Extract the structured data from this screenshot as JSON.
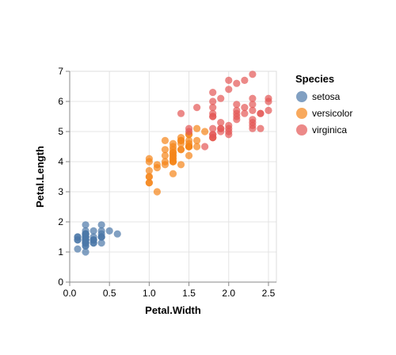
{
  "chart_data": {
    "type": "scatter",
    "xlabel": "Petal.Width",
    "ylabel": "Petal.Length",
    "xlim": [
      0,
      2.6
    ],
    "ylim": [
      0,
      7
    ],
    "x_ticks": [
      0.0,
      0.5,
      1.0,
      1.5,
      2.0,
      2.5
    ],
    "x_tick_labels": [
      "0.0",
      "0.5",
      "1.0",
      "1.5",
      "2.0",
      "2.5"
    ],
    "y_ticks": [
      0,
      1,
      2,
      3,
      4,
      5,
      6,
      7
    ],
    "y_tick_labels": [
      "0",
      "1",
      "2",
      "3",
      "4",
      "5",
      "6",
      "7"
    ],
    "grid": true,
    "legend": {
      "title": "Species",
      "position": "right"
    },
    "series": [
      {
        "name": "setosa",
        "color": "#4c78a8",
        "points": [
          [
            0.2,
            1.4
          ],
          [
            0.2,
            1.4
          ],
          [
            0.2,
            1.3
          ],
          [
            0.2,
            1.5
          ],
          [
            0.2,
            1.4
          ],
          [
            0.4,
            1.7
          ],
          [
            0.3,
            1.4
          ],
          [
            0.2,
            1.5
          ],
          [
            0.2,
            1.4
          ],
          [
            0.1,
            1.5
          ],
          [
            0.2,
            1.5
          ],
          [
            0.2,
            1.6
          ],
          [
            0.1,
            1.4
          ],
          [
            0.1,
            1.1
          ],
          [
            0.2,
            1.2
          ],
          [
            0.4,
            1.5
          ],
          [
            0.4,
            1.3
          ],
          [
            0.3,
            1.4
          ],
          [
            0.3,
            1.7
          ],
          [
            0.3,
            1.5
          ],
          [
            0.2,
            1.7
          ],
          [
            0.4,
            1.5
          ],
          [
            0.2,
            1.0
          ],
          [
            0.5,
            1.7
          ],
          [
            0.2,
            1.9
          ],
          [
            0.2,
            1.6
          ],
          [
            0.4,
            1.6
          ],
          [
            0.2,
            1.5
          ],
          [
            0.2,
            1.4
          ],
          [
            0.2,
            1.6
          ],
          [
            0.2,
            1.6
          ],
          [
            0.4,
            1.5
          ],
          [
            0.1,
            1.5
          ],
          [
            0.2,
            1.4
          ],
          [
            0.2,
            1.5
          ],
          [
            0.2,
            1.2
          ],
          [
            0.2,
            1.3
          ],
          [
            0.1,
            1.4
          ],
          [
            0.2,
            1.3
          ],
          [
            0.2,
            1.5
          ],
          [
            0.3,
            1.3
          ],
          [
            0.3,
            1.3
          ],
          [
            0.2,
            1.3
          ],
          [
            0.6,
            1.6
          ],
          [
            0.4,
            1.9
          ],
          [
            0.3,
            1.4
          ],
          [
            0.2,
            1.6
          ],
          [
            0.2,
            1.4
          ],
          [
            0.2,
            1.5
          ],
          [
            0.2,
            1.4
          ]
        ]
      },
      {
        "name": "versicolor",
        "color": "#f58518",
        "points": [
          [
            1.4,
            4.7
          ],
          [
            1.5,
            4.5
          ],
          [
            1.5,
            4.9
          ],
          [
            1.3,
            4.0
          ],
          [
            1.5,
            4.6
          ],
          [
            1.3,
            4.5
          ],
          [
            1.6,
            4.7
          ],
          [
            1.0,
            3.3
          ],
          [
            1.3,
            4.6
          ],
          [
            1.4,
            3.9
          ],
          [
            1.0,
            3.5
          ],
          [
            1.5,
            4.2
          ],
          [
            1.0,
            4.0
          ],
          [
            1.4,
            4.7
          ],
          [
            1.3,
            3.6
          ],
          [
            1.4,
            4.4
          ],
          [
            1.5,
            4.5
          ],
          [
            1.0,
            4.1
          ],
          [
            1.5,
            4.5
          ],
          [
            1.1,
            3.9
          ],
          [
            1.8,
            4.8
          ],
          [
            1.3,
            4.0
          ],
          [
            1.5,
            4.9
          ],
          [
            1.2,
            4.7
          ],
          [
            1.3,
            4.3
          ],
          [
            1.4,
            4.4
          ],
          [
            1.4,
            4.8
          ],
          [
            1.7,
            5.0
          ],
          [
            1.5,
            4.5
          ],
          [
            1.0,
            3.5
          ],
          [
            1.1,
            3.8
          ],
          [
            1.0,
            3.7
          ],
          [
            1.2,
            3.9
          ],
          [
            1.6,
            5.1
          ],
          [
            1.5,
            4.5
          ],
          [
            1.6,
            4.5
          ],
          [
            1.5,
            4.7
          ],
          [
            1.3,
            4.4
          ],
          [
            1.3,
            4.1
          ],
          [
            1.3,
            4.0
          ],
          [
            1.2,
            4.4
          ],
          [
            1.4,
            4.6
          ],
          [
            1.2,
            4.0
          ],
          [
            1.0,
            3.3
          ],
          [
            1.3,
            4.2
          ],
          [
            1.2,
            4.2
          ],
          [
            1.3,
            4.2
          ],
          [
            1.3,
            4.3
          ],
          [
            1.1,
            3.0
          ],
          [
            1.3,
            4.1
          ]
        ]
      },
      {
        "name": "virginica",
        "color": "#e45756",
        "points": [
          [
            2.5,
            6.0
          ],
          [
            1.9,
            5.1
          ],
          [
            2.1,
            5.9
          ],
          [
            1.8,
            5.6
          ],
          [
            2.2,
            5.8
          ],
          [
            2.1,
            6.6
          ],
          [
            1.7,
            4.5
          ],
          [
            1.8,
            6.3
          ],
          [
            1.8,
            5.8
          ],
          [
            2.5,
            6.1
          ],
          [
            2.0,
            5.1
          ],
          [
            1.9,
            5.3
          ],
          [
            2.1,
            5.5
          ],
          [
            2.0,
            5.0
          ],
          [
            2.4,
            5.1
          ],
          [
            2.3,
            5.3
          ],
          [
            1.8,
            5.5
          ],
          [
            2.2,
            6.7
          ],
          [
            2.3,
            6.9
          ],
          [
            1.5,
            5.0
          ],
          [
            2.3,
            5.7
          ],
          [
            2.0,
            4.9
          ],
          [
            2.0,
            6.7
          ],
          [
            1.8,
            4.9
          ],
          [
            2.1,
            5.7
          ],
          [
            1.8,
            6.0
          ],
          [
            1.8,
            4.8
          ],
          [
            1.8,
            4.9
          ],
          [
            2.1,
            5.6
          ],
          [
            1.6,
            5.8
          ],
          [
            1.9,
            6.1
          ],
          [
            2.0,
            6.4
          ],
          [
            2.2,
            5.6
          ],
          [
            1.5,
            5.1
          ],
          [
            1.4,
            5.6
          ],
          [
            2.3,
            6.1
          ],
          [
            2.4,
            5.6
          ],
          [
            1.8,
            5.5
          ],
          [
            1.8,
            4.8
          ],
          [
            2.1,
            5.4
          ],
          [
            2.4,
            5.6
          ],
          [
            2.3,
            5.1
          ],
          [
            1.9,
            5.1
          ],
          [
            2.3,
            5.9
          ],
          [
            2.5,
            5.7
          ],
          [
            2.3,
            5.2
          ],
          [
            1.9,
            5.0
          ],
          [
            2.0,
            5.2
          ],
          [
            2.3,
            5.4
          ],
          [
            1.8,
            5.1
          ]
        ]
      }
    ]
  }
}
